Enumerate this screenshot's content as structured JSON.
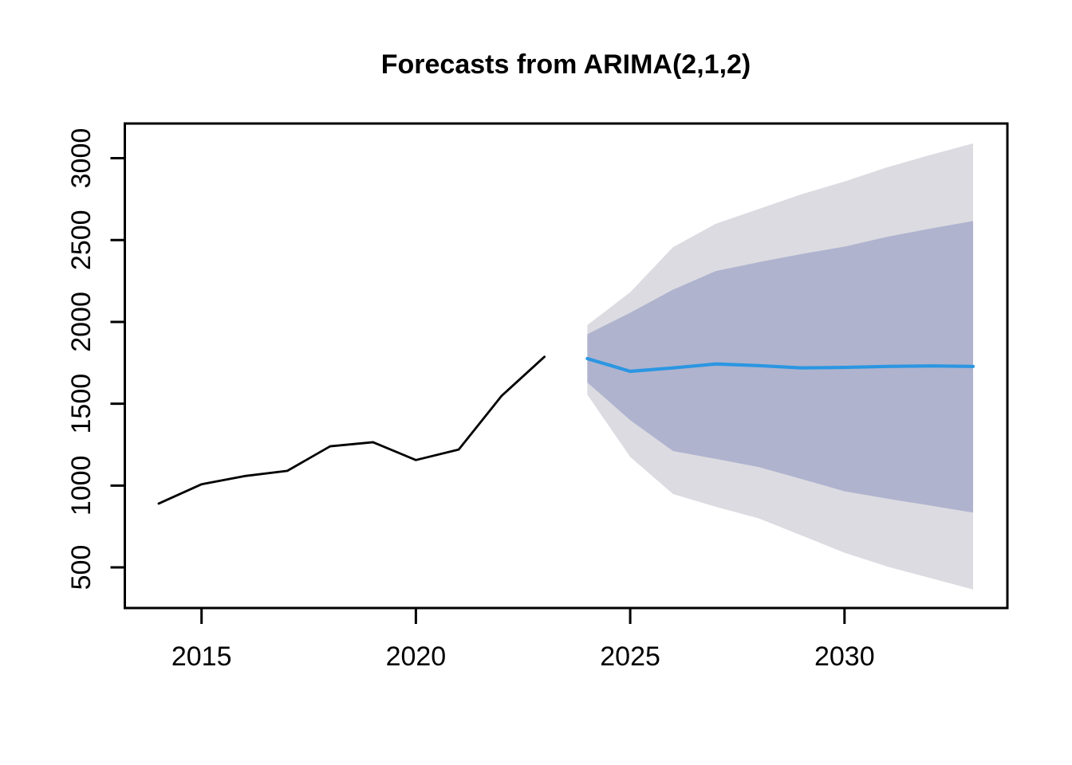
{
  "chart_data": {
    "type": "line",
    "title": "Forecasts from ARIMA(2,1,2)",
    "xlabel": "",
    "ylabel": "",
    "grid": false,
    "legend_position": "none",
    "xlim": [
      2013.21,
      2033.8
    ],
    "ylim": [
      252,
      3212
    ],
    "x_ticks": [
      2015,
      2020,
      2025,
      2030
    ],
    "y_ticks": [
      500,
      1000,
      1500,
      2000,
      2500,
      3000
    ],
    "series": [
      {
        "name": "observed",
        "color": "#000000",
        "x": [
          2014,
          2015,
          2016,
          2017,
          2018,
          2019,
          2020,
          2021,
          2022,
          2023
        ],
        "values": [
          890,
          1008,
          1058,
          1090,
          1240,
          1265,
          1156,
          1220,
          1548,
          1787
        ]
      },
      {
        "name": "point-forecast",
        "color": "#2B96E2",
        "x": [
          2024,
          2025,
          2026,
          2027,
          2028,
          2029,
          2030,
          2031,
          2032,
          2033
        ],
        "values": [
          1776,
          1698,
          1719,
          1743,
          1733,
          1719,
          1722,
          1728,
          1731,
          1728
        ]
      }
    ],
    "intervals": [
      {
        "name": "outer",
        "color": "#DBDBE1",
        "x": [
          2024,
          2025,
          2026,
          2027,
          2028,
          2029,
          2030,
          2031,
          2032,
          2033
        ],
        "lower": [
          1556,
          1175,
          948,
          870,
          800,
          695,
          590,
          505,
          435,
          365
        ],
        "upper": [
          1980,
          2181,
          2457,
          2600,
          2690,
          2780,
          2858,
          2945,
          3020,
          3090
        ]
      },
      {
        "name": "inner",
        "color": "#AFB3CE",
        "x": [
          2024,
          2025,
          2026,
          2027,
          2028,
          2029,
          2030,
          2031,
          2032,
          2033
        ],
        "lower": [
          1630,
          1400,
          1211,
          1163,
          1113,
          1040,
          965,
          920,
          878,
          835
        ],
        "upper": [
          1925,
          2056,
          2197,
          2311,
          2365,
          2415,
          2460,
          2520,
          2570,
          2616
        ]
      }
    ]
  }
}
